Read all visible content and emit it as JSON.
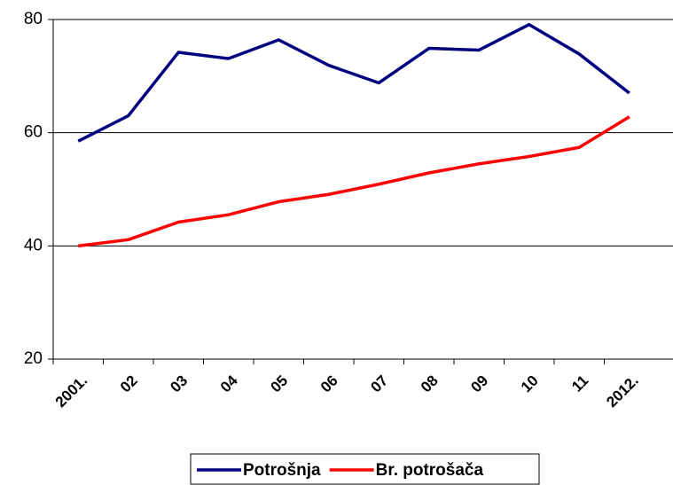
{
  "chart_data": {
    "type": "line",
    "categories": [
      "2001.",
      "02",
      "03",
      "04",
      "05",
      "06",
      "07",
      "08",
      "09",
      "10",
      "11",
      "2012."
    ],
    "series": [
      {
        "name": "Potrošnja",
        "color": "#000080",
        "values": [
          58.5,
          63,
          74.2,
          73.1,
          76.4,
          71.9,
          68.8,
          74.9,
          74.6,
          79.1,
          73.9,
          67
        ]
      },
      {
        "name": "Br. potrošača",
        "color": "#ff0000",
        "values": [
          40,
          41.1,
          44.2,
          45.5,
          47.8,
          49.1,
          50.9,
          52.9,
          54.5,
          55.8,
          57.4,
          62.8
        ]
      }
    ],
    "ylim": [
      20,
      80
    ],
    "yticks": [
      20,
      40,
      60,
      80
    ],
    "grid": true,
    "legend": "bottom"
  }
}
